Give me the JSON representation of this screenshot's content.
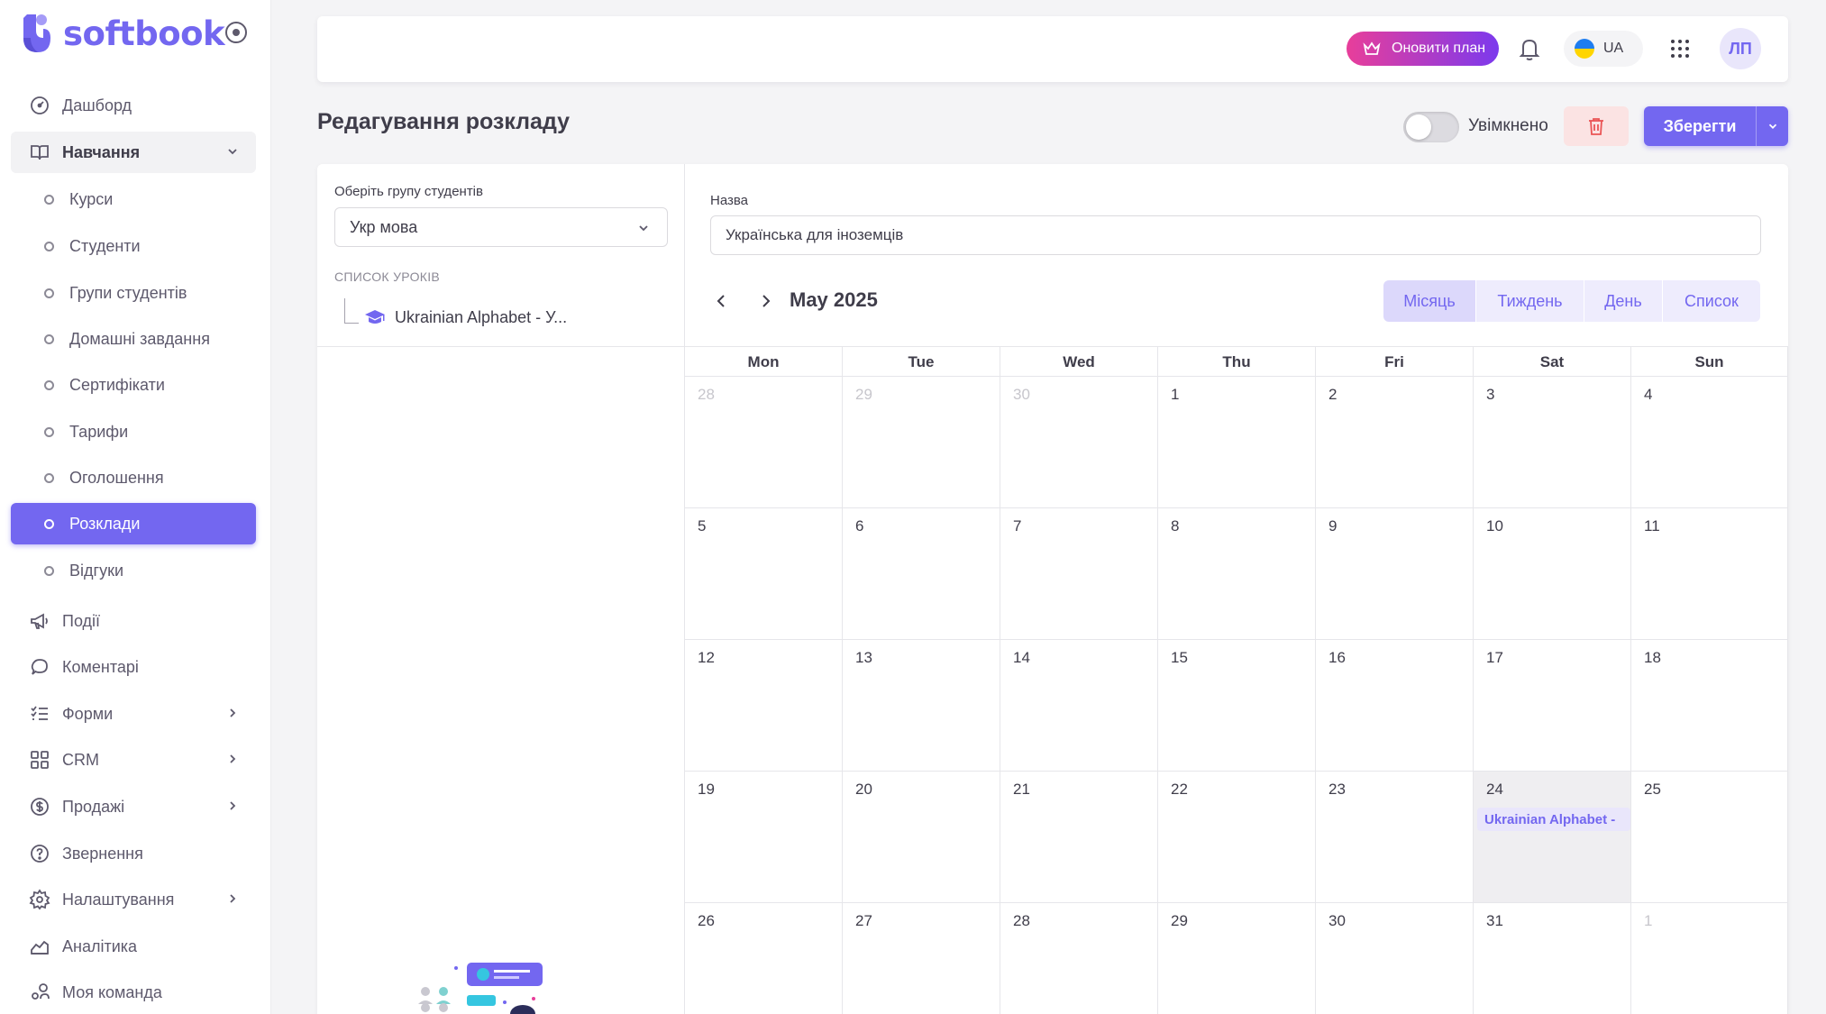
{
  "app": {
    "logo_text": "softbook"
  },
  "sidebar": {
    "items": [
      {
        "label": "Дашборд",
        "icon": "dashboard-icon"
      },
      {
        "label": "Навчання",
        "icon": "book-icon"
      },
      {
        "label": "Курси"
      },
      {
        "label": "Студенти"
      },
      {
        "label": "Групи студентів"
      },
      {
        "label": "Домашні завдання"
      },
      {
        "label": "Сертифікати"
      },
      {
        "label": "Тарифи"
      },
      {
        "label": "Оголошення"
      },
      {
        "label": "Розклади"
      },
      {
        "label": "Відгуки"
      },
      {
        "label": "Події",
        "icon": "megaphone-icon"
      },
      {
        "label": "Коментарі",
        "icon": "comment-icon"
      },
      {
        "label": "Форми",
        "icon": "checklist-icon"
      },
      {
        "label": "CRM",
        "icon": "grid-icon"
      },
      {
        "label": "Продажі",
        "icon": "dollar-icon"
      },
      {
        "label": "Звернення",
        "icon": "help-icon"
      },
      {
        "label": "Налаштування",
        "icon": "settings-icon"
      },
      {
        "label": "Аналітика",
        "icon": "chart-icon"
      },
      {
        "label": "Моя команда",
        "icon": "team-icon"
      }
    ]
  },
  "header": {
    "upgrade_label": "Оновити план",
    "language": "UA",
    "avatar_initials": "ЛП"
  },
  "page": {
    "title": "Редагування розкладу",
    "toggle_label": "Увімкнено",
    "save_label": "Зберегти"
  },
  "left_panel": {
    "group_label": "Оберіть групу студентів",
    "group_value": "Укр мова",
    "lessons_caption": "СПИСОК УРОКІВ",
    "lessons": [
      "Ukrainian Alphabet - У..."
    ]
  },
  "form": {
    "name_label": "Назва",
    "name_value": "Українська для іноземців"
  },
  "calendar": {
    "title": "May 2025",
    "views": [
      "Місяць",
      "Тиждень",
      "День",
      "Список"
    ],
    "active_view": "Місяць",
    "weekdays": [
      "Mon",
      "Tue",
      "Wed",
      "Thu",
      "Fri",
      "Sat",
      "Sun"
    ],
    "weeks": [
      [
        {
          "d": "28",
          "other": true
        },
        {
          "d": "29",
          "other": true
        },
        {
          "d": "30",
          "other": true
        },
        {
          "d": "1"
        },
        {
          "d": "2"
        },
        {
          "d": "3"
        },
        {
          "d": "4"
        }
      ],
      [
        {
          "d": "5"
        },
        {
          "d": "6"
        },
        {
          "d": "7"
        },
        {
          "d": "8"
        },
        {
          "d": "9"
        },
        {
          "d": "10"
        },
        {
          "d": "11"
        }
      ],
      [
        {
          "d": "12"
        },
        {
          "d": "13"
        },
        {
          "d": "14"
        },
        {
          "d": "15"
        },
        {
          "d": "16"
        },
        {
          "d": "17"
        },
        {
          "d": "18"
        }
      ],
      [
        {
          "d": "19"
        },
        {
          "d": "20"
        },
        {
          "d": "21"
        },
        {
          "d": "22"
        },
        {
          "d": "23"
        },
        {
          "d": "24",
          "today": true,
          "event": "Ukrainian Alphabet -"
        },
        {
          "d": "25"
        }
      ],
      [
        {
          "d": "26"
        },
        {
          "d": "27"
        },
        {
          "d": "28"
        },
        {
          "d": "29"
        },
        {
          "d": "30"
        },
        {
          "d": "31"
        },
        {
          "d": "1",
          "other": true
        }
      ]
    ]
  }
}
